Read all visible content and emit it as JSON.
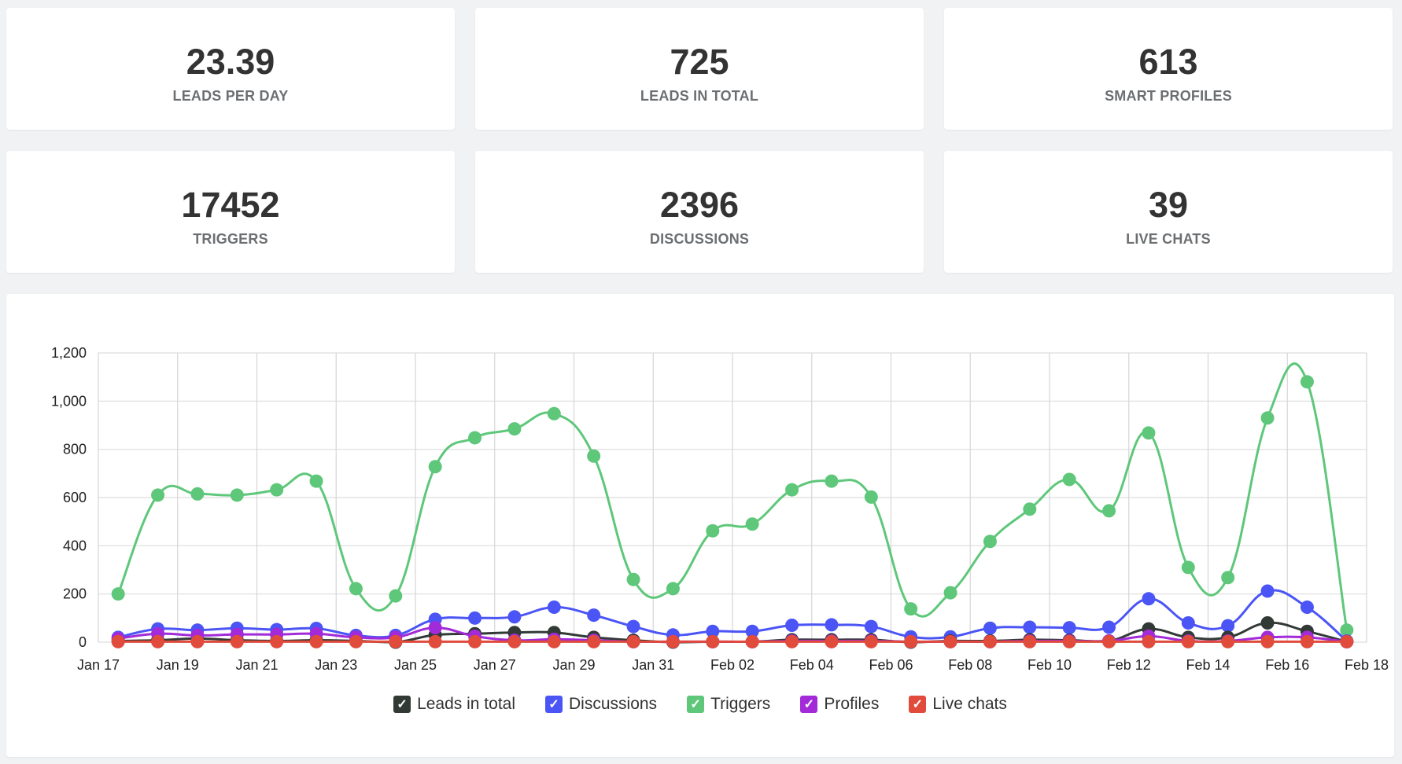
{
  "stats": [
    {
      "value": "23.39",
      "label": "LEADS PER DAY"
    },
    {
      "value": "725",
      "label": "LEADS IN TOTAL"
    },
    {
      "value": "613",
      "label": "SMART PROFILES"
    },
    {
      "value": "17452",
      "label": "TRIGGERS"
    },
    {
      "value": "2396",
      "label": "DISCUSSIONS"
    },
    {
      "value": "39",
      "label": "LIVE CHATS"
    }
  ],
  "chart_data": {
    "type": "line",
    "title": "",
    "xlabel": "",
    "ylabel": "",
    "ylim": [
      0,
      1200
    ],
    "yticks": [
      "0",
      "200",
      "400",
      "600",
      "800",
      "1,000",
      "1,200"
    ],
    "xtick_labels": [
      "Jan 17",
      "Jan 19",
      "Jan 21",
      "Jan 23",
      "Jan 25",
      "Jan 27",
      "Jan 29",
      "Jan 31",
      "Feb 02",
      "Feb 04",
      "Feb 06",
      "Feb 08",
      "Feb 10",
      "Feb 12",
      "Feb 14",
      "Feb 16",
      "Feb 18"
    ],
    "x": [
      "Jan 17",
      "Jan 18",
      "Jan 19",
      "Jan 20",
      "Jan 21",
      "Jan 22",
      "Jan 23",
      "Jan 24",
      "Jan 25",
      "Jan 26",
      "Jan 27",
      "Jan 28",
      "Jan 29",
      "Jan 30",
      "Jan 31",
      "Feb 01",
      "Feb 02",
      "Feb 03",
      "Feb 04",
      "Feb 05",
      "Feb 06",
      "Feb 07",
      "Feb 08",
      "Feb 09",
      "Feb 10",
      "Feb 11",
      "Feb 12",
      "Feb 13",
      "Feb 14",
      "Feb 15",
      "Feb 16",
      "Feb 17"
    ],
    "grid": true,
    "legend_position": "bottom",
    "series": [
      {
        "name": "Leads in total",
        "color": "#323a36",
        "values": [
          5,
          8,
          15,
          8,
          5,
          8,
          5,
          0,
          30,
          35,
          40,
          40,
          20,
          8,
          0,
          2,
          2,
          10,
          10,
          10,
          0,
          5,
          5,
          10,
          8,
          5,
          55,
          20,
          20,
          80,
          45,
          2
        ]
      },
      {
        "name": "Discussions",
        "color": "#4b55f5",
        "values": [
          20,
          55,
          50,
          58,
          52,
          57,
          28,
          28,
          95,
          100,
          105,
          145,
          112,
          65,
          30,
          45,
          45,
          70,
          72,
          65,
          22,
          22,
          58,
          62,
          60,
          62,
          180,
          80,
          68,
          212,
          145,
          5
        ]
      },
      {
        "name": "Triggers",
        "color": "#5ec77a",
        "values": [
          200,
          610,
          615,
          610,
          632,
          668,
          222,
          192,
          728,
          848,
          885,
          948,
          772,
          260,
          222,
          462,
          490,
          632,
          668,
          602,
          138,
          205,
          418,
          552,
          675,
          545,
          868,
          310,
          268,
          930,
          1080,
          50
        ]
      },
      {
        "name": "Profiles",
        "color": "#a22ad8",
        "values": [
          15,
          35,
          28,
          32,
          32,
          35,
          20,
          20,
          60,
          25,
          8,
          12,
          8,
          2,
          2,
          2,
          2,
          5,
          5,
          5,
          2,
          2,
          2,
          5,
          5,
          5,
          25,
          5,
          5,
          20,
          20,
          2
        ]
      },
      {
        "name": "Live chats",
        "color": "#e04b3c",
        "values": [
          2,
          2,
          2,
          2,
          2,
          2,
          2,
          2,
          2,
          2,
          2,
          2,
          2,
          2,
          2,
          2,
          2,
          2,
          2,
          2,
          2,
          2,
          2,
          2,
          2,
          2,
          2,
          2,
          2,
          2,
          2,
          2
        ]
      }
    ]
  }
}
